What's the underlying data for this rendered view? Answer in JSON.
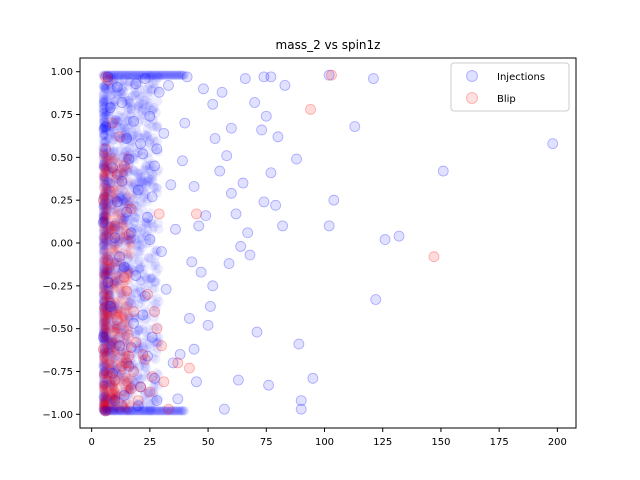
{
  "chart_data": {
    "type": "scatter",
    "title": "mass_2 vs spin1z",
    "xlabel": "",
    "ylabel": "",
    "xlim": [
      -5,
      208
    ],
    "ylim": [
      -1.08,
      1.08
    ],
    "x_ticks": [
      0,
      25,
      50,
      75,
      100,
      125,
      150,
      175,
      200
    ],
    "y_ticks": [
      -1.0,
      -0.75,
      -0.5,
      -0.25,
      0.0,
      0.25,
      0.5,
      0.75,
      1.0
    ],
    "x_tick_labels": [
      "0",
      "25",
      "50",
      "75",
      "100",
      "125",
      "150",
      "175",
      "200"
    ],
    "y_tick_labels": [
      "−1.00",
      "−0.75",
      "−0.50",
      "−0.25",
      "0.00",
      "0.25",
      "0.50",
      "0.75",
      "1.00"
    ],
    "legend_position": "top-right",
    "grid": false,
    "series": [
      {
        "name": "Injections",
        "color": "#0000ff",
        "points": [
          [
            198,
            0.58
          ],
          [
            151,
            0.42
          ],
          [
            121,
            0.96
          ],
          [
            122,
            -0.33
          ],
          [
            126,
            0.02
          ],
          [
            132,
            0.04
          ],
          [
            113,
            0.68
          ],
          [
            102,
            0.98
          ],
          [
            104,
            0.25
          ],
          [
            102,
            0.1
          ],
          [
            89,
            -0.59
          ],
          [
            90,
            -0.92
          ],
          [
            90,
            -0.97
          ],
          [
            95,
            -0.79
          ],
          [
            88,
            0.49
          ],
          [
            83,
            0.92
          ],
          [
            82,
            0.1
          ],
          [
            77,
            0.97
          ],
          [
            80,
            0.62
          ],
          [
            75,
            0.74
          ],
          [
            77,
            0.41
          ],
          [
            76,
            -0.83
          ],
          [
            74,
            0.97
          ],
          [
            66,
            0.96
          ],
          [
            70,
            0.82
          ],
          [
            73,
            0.66
          ],
          [
            74,
            0.24
          ],
          [
            67,
            0.06
          ],
          [
            68,
            -0.07
          ],
          [
            64,
            -0.02
          ],
          [
            62,
            0.17
          ],
          [
            63,
            -0.8
          ],
          [
            57,
            -0.97
          ],
          [
            60,
            0.29
          ],
          [
            58,
            0.51
          ],
          [
            60,
            0.67
          ],
          [
            53,
            0.61
          ],
          [
            55,
            0.42
          ],
          [
            52,
            0.81
          ],
          [
            48,
            0.9
          ],
          [
            50,
            -0.48
          ],
          [
            51,
            -0.37
          ],
          [
            47,
            -0.17
          ],
          [
            45,
            -0.81
          ],
          [
            43,
            -0.11
          ],
          [
            46,
            0.1
          ],
          [
            44,
            0.33
          ],
          [
            42,
            -0.44
          ],
          [
            40,
            0.7
          ],
          [
            38,
            -0.65
          ],
          [
            36,
            0.08
          ],
          [
            34,
            0.34
          ],
          [
            35,
            -0.7
          ],
          [
            31,
            0.64
          ],
          [
            32,
            -0.27
          ],
          [
            29,
            0.88
          ],
          [
            28,
            -0.92
          ],
          [
            27,
            0.45
          ],
          [
            26,
            -0.55
          ],
          [
            24,
            0.15
          ],
          [
            25,
            0.74
          ],
          [
            23,
            -0.31
          ],
          [
            22,
            0.52
          ],
          [
            21,
            -0.84
          ],
          [
            20,
            0.31
          ],
          [
            19,
            0.93
          ],
          [
            18,
            -0.47
          ],
          [
            17,
            0.06
          ],
          [
            16,
            -0.72
          ],
          [
            15,
            0.61
          ],
          [
            14,
            -0.14
          ],
          [
            13,
            0.82
          ],
          [
            12,
            -0.6
          ],
          [
            11,
            0.24
          ],
          [
            10,
            -0.92
          ],
          [
            9,
            0.44
          ],
          [
            8,
            -0.37
          ],
          [
            7,
            0.97
          ],
          [
            6,
            -0.98
          ],
          [
            5,
            0.12
          ],
          [
            5,
            -0.55
          ],
          [
            6,
            0.68
          ],
          [
            7,
            -0.23
          ],
          [
            8,
            0.79
          ],
          [
            9,
            -0.76
          ],
          [
            10,
            0.03
          ],
          [
            11,
            0.91
          ],
          [
            12,
            -0.08
          ],
          [
            13,
            0.36
          ],
          [
            14,
            -0.89
          ],
          [
            15,
            0.18
          ],
          [
            16,
            0.49
          ],
          [
            17,
            -0.61
          ],
          [
            18,
            0.71
          ],
          [
            19,
            -0.19
          ],
          [
            20,
            -0.95
          ],
          [
            21,
            0.58
          ],
          [
            22,
            -0.42
          ],
          [
            23,
            0.96
          ],
          [
            24,
            -0.66
          ],
          [
            25,
            0.02
          ],
          [
            26,
            0.27
          ],
          [
            27,
            -0.79
          ],
          [
            28,
            0.55
          ],
          [
            30,
            -0.05
          ],
          [
            33,
            0.92
          ],
          [
            37,
            -0.91
          ],
          [
            39,
            0.48
          ],
          [
            41,
            0.97
          ],
          [
            44,
            -0.62
          ],
          [
            49,
            0.16
          ],
          [
            52,
            -0.25
          ],
          [
            56,
            0.88
          ],
          [
            59,
            -0.12
          ],
          [
            65,
            0.35
          ],
          [
            71,
            -0.52
          ],
          [
            79,
            0.22
          ]
        ]
      },
      {
        "name": "Blip",
        "color": "#ff0000",
        "points": [
          [
            147,
            -0.08
          ],
          [
            103,
            0.98
          ],
          [
            94,
            0.78
          ],
          [
            45,
            0.17
          ],
          [
            42,
            -0.73
          ],
          [
            37,
            -0.7
          ],
          [
            33,
            -0.97
          ],
          [
            31,
            -0.81
          ],
          [
            30,
            -0.6
          ],
          [
            29,
            0.17
          ],
          [
            28,
            -0.5
          ],
          [
            26,
            -0.78
          ],
          [
            24,
            -0.3
          ],
          [
            22,
            -0.65
          ],
          [
            20,
            -0.92
          ],
          [
            18,
            -0.4
          ],
          [
            17,
            -0.85
          ],
          [
            16,
            0.05
          ],
          [
            15,
            -0.7
          ],
          [
            14,
            -0.2
          ],
          [
            13,
            -0.95
          ],
          [
            12,
            -0.55
          ],
          [
            11,
            0.4
          ],
          [
            10,
            -0.8
          ],
          [
            9,
            0.7
          ],
          [
            8,
            -0.35
          ],
          [
            7,
            0.95
          ],
          [
            6,
            0.97
          ],
          [
            6,
            -0.98
          ],
          [
            5,
            0.25
          ],
          [
            5,
            -0.62
          ],
          [
            6,
            0.55
          ],
          [
            7,
            -0.1
          ],
          [
            8,
            0.3
          ],
          [
            9,
            -0.88
          ],
          [
            10,
            0.1
          ],
          [
            11,
            -0.45
          ],
          [
            12,
            0.62
          ],
          [
            13,
            -0.72
          ],
          [
            14,
            0.45
          ],
          [
            15,
            -0.28
          ],
          [
            16,
            -0.66
          ],
          [
            17,
            0.2
          ],
          [
            18,
            -0.75
          ],
          [
            19,
            -0.58
          ],
          [
            21,
            -0.84
          ],
          [
            23,
            -0.68
          ],
          [
            25,
            -0.87
          ],
          [
            27,
            -0.4
          ]
        ]
      }
    ]
  }
}
